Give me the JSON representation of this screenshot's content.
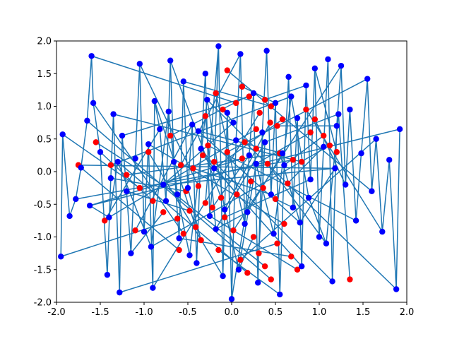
{
  "chart_data": {
    "type": "scatter",
    "title": "",
    "xlabel": "",
    "ylabel": "",
    "xlim": [
      -2.0,
      2.0
    ],
    "ylim": [
      -2.0,
      2.0
    ],
    "x_ticks": [
      "-2.0",
      "-1.5",
      "-1.0",
      "-0.5",
      "0.0",
      "0.5",
      "1.0",
      "1.5",
      "2.0"
    ],
    "y_ticks": [
      "-2.0",
      "-1.5",
      "-1.0",
      "-0.5",
      "0.0",
      "0.5",
      "1.0",
      "1.5",
      "2.0"
    ],
    "grid": false,
    "legend": "none",
    "colors": {
      "red_points": "#ff0000",
      "blue_points": "#0000ff",
      "lines": "#1f77b4"
    },
    "series": [
      {
        "marker": "red-circles",
        "x": [
          -0.62,
          -0.55,
          -0.48,
          -0.41,
          -0.35,
          -0.3,
          -0.22,
          -0.15,
          -0.08,
          0.02,
          0.1,
          0.18,
          0.25,
          0.31,
          0.38,
          0.45,
          0.52,
          0.6,
          0.68,
          0.75,
          -0.58,
          -0.44,
          -0.33,
          -0.2,
          -0.05,
          0.12,
          0.28,
          0.41,
          0.55,
          0.7,
          -0.52,
          -0.38,
          -0.12,
          0.06,
          0.22,
          0.36,
          0.5,
          0.64,
          -0.27,
          0.15,
          -1.55,
          -1.38,
          -1.2,
          -1.05,
          -0.9,
          -0.78,
          -1.45,
          -1.1,
          -0.95,
          -0.7,
          1.05,
          1.2,
          0.95,
          0.85,
          1.12,
          0.9,
          -0.3,
          -0.1,
          0.05,
          0.2,
          0.32,
          0.45,
          0.58,
          -0.18,
          0.12,
          0.38,
          0.52,
          -0.05,
          0.28,
          0.44,
          1.35,
          -1.75,
          -0.6,
          0.8
        ],
        "y": [
          -0.72,
          -0.95,
          -0.6,
          -0.85,
          -1.05,
          -0.48,
          -0.55,
          -1.2,
          -0.7,
          -0.9,
          -1.35,
          -1.55,
          -1.0,
          -1.25,
          -1.45,
          -1.65,
          -1.1,
          -0.8,
          -1.3,
          -1.5,
          0.1,
          0.05,
          0.25,
          0.15,
          0.3,
          0.2,
          0.35,
          0.12,
          0.28,
          0.18,
          -0.3,
          -0.22,
          -0.4,
          -0.35,
          -0.15,
          -0.25,
          -0.42,
          -0.18,
          0.4,
          0.45,
          0.45,
          0.1,
          -0.05,
          -0.25,
          -0.45,
          -0.62,
          -0.75,
          -0.9,
          0.3,
          0.55,
          0.55,
          0.3,
          0.8,
          0.95,
          0.4,
          0.6,
          0.85,
          0.95,
          1.05,
          1.15,
          0.9,
          1.0,
          0.8,
          1.2,
          1.3,
          1.1,
          0.7,
          1.55,
          0.65,
          0.75,
          -1.65,
          0.1,
          -1.2,
          0.15
        ]
      },
      {
        "marker": "blue-circles",
        "x": [
          -1.95,
          -1.93,
          -1.85,
          -1.78,
          -1.72,
          -1.65,
          -1.6,
          -1.58,
          -1.5,
          -1.42,
          -1.38,
          -1.35,
          -1.28,
          -1.25,
          -1.2,
          -1.15,
          -1.1,
          -1.05,
          -1.0,
          -0.95,
          -0.9,
          -0.88,
          -0.82,
          -0.75,
          -0.7,
          -0.66,
          -0.6,
          -0.55,
          -0.5,
          -0.45,
          -0.4,
          -0.35,
          -0.3,
          -0.25,
          -0.2,
          -0.15,
          -0.1,
          -0.05,
          0.0,
          0.05,
          0.1,
          0.15,
          0.2,
          0.25,
          0.3,
          0.35,
          0.4,
          0.45,
          0.5,
          0.55,
          0.6,
          0.65,
          0.7,
          0.75,
          0.8,
          0.85,
          0.9,
          0.95,
          1.0,
          1.05,
          1.1,
          1.15,
          1.2,
          1.25,
          1.3,
          1.35,
          1.42,
          1.48,
          1.55,
          1.6,
          1.65,
          1.72,
          1.8,
          1.88,
          1.92,
          -1.62,
          -1.4,
          -1.3,
          -0.92,
          -0.72,
          -0.62,
          -0.48,
          -0.28,
          -0.08,
          0.08,
          0.28,
          0.48,
          0.68,
          0.88,
          1.08,
          1.22,
          0.38,
          -0.18,
          0.18,
          0.58,
          -0.38,
          0.78,
          1.18,
          -0.78,
          0.02
        ],
        "y": [
          -1.3,
          0.57,
          -0.68,
          -0.42,
          0.06,
          0.78,
          1.77,
          1.05,
          0.3,
          -1.58,
          -0.1,
          0.88,
          -1.85,
          0.55,
          -0.3,
          -1.25,
          0.2,
          1.65,
          -0.92,
          0.42,
          -1.78,
          1.08,
          0.65,
          -0.45,
          1.7,
          0.15,
          -1.02,
          1.38,
          -0.25,
          0.72,
          -1.4,
          0.35,
          1.5,
          -0.68,
          0.05,
          1.92,
          -1.6,
          0.9,
          -1.95,
          0.48,
          1.8,
          -0.8,
          0.25,
          1.2,
          -1.7,
          0.6,
          1.85,
          -0.35,
          1.05,
          -1.88,
          0.1,
          1.45,
          -0.55,
          0.82,
          -1.45,
          1.32,
          -0.12,
          1.58,
          -1.0,
          0.38,
          1.72,
          -1.68,
          0.7,
          1.62,
          -0.2,
          0.95,
          -0.75,
          0.28,
          1.42,
          -0.3,
          0.5,
          -0.92,
          0.18,
          -1.8,
          0.65,
          -0.52,
          -0.7,
          0.15,
          -1.15,
          0.92,
          -0.35,
          -1.28,
          1.1,
          -0.58,
          -1.5,
          0.12,
          -0.95,
          1.15,
          -0.4,
          -1.1,
          0.88,
          0.45,
          -0.88,
          -0.62,
          0.28,
          0.62,
          -0.78,
          0.05,
          -0.2,
          0.75
        ]
      }
    ]
  }
}
